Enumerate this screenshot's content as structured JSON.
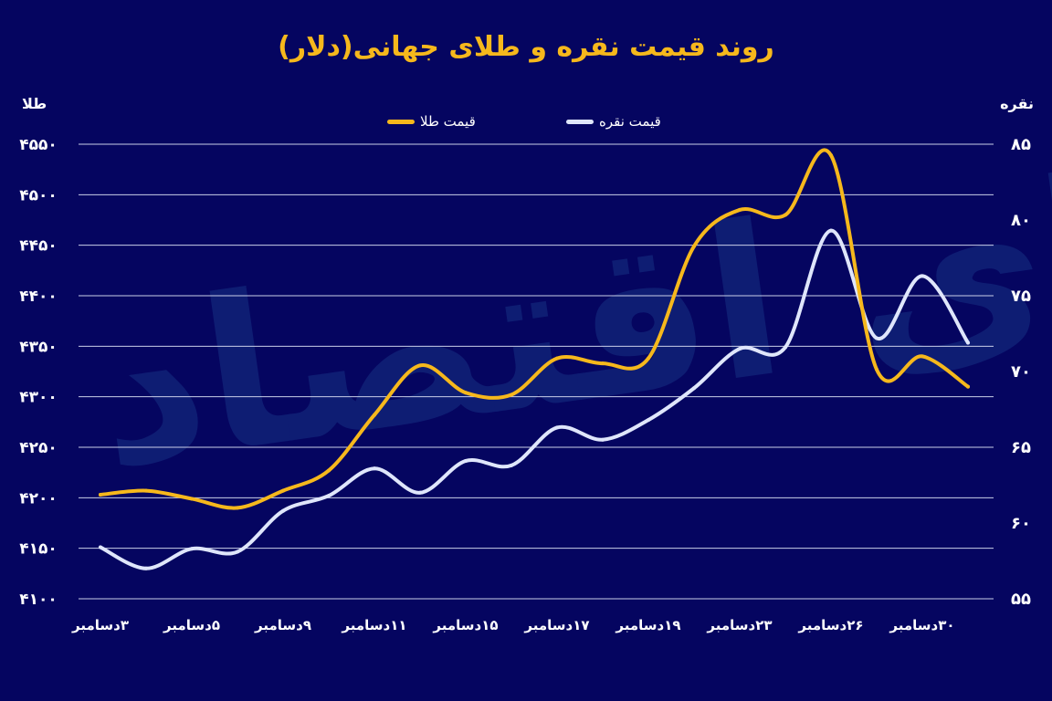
{
  "watermark": "دنیای اقتصاد",
  "chart_data": {
    "type": "line",
    "title": "روند قیمت نقره و طلای جهانی(دلار)",
    "ylabel_left": "طلا",
    "ylabel_right": "نقره",
    "x_labels": [
      "۳دسامبر",
      "۵دسامبر",
      "۹دسامبر",
      "۱۱دسامبر",
      "۱۵دسامبر",
      "۱۷دسامبر",
      "۱۹دسامبر",
      "۲۳دسامبر",
      "۲۶دسامبر",
      "۳۰دسامبر"
    ],
    "y_left": {
      "range": [
        4100,
        4550
      ],
      "ticks": [
        "۴۱۰۰",
        "۴۱۵۰",
        "۴۲۰۰",
        "۴۲۵۰",
        "۴۳۰۰",
        "۴۳۵۰",
        "۴۴۰۰",
        "۴۴۵۰",
        "۴۵۰۰",
        "۴۵۵۰"
      ]
    },
    "y_right": {
      "range": [
        55,
        85
      ],
      "ticks": [
        "۵۵",
        "۶۰",
        "۶۵",
        "۷۰",
        "۷۵",
        "۸۰",
        "۸۵"
      ]
    },
    "grid": true,
    "legend_position": "top-center",
    "series": [
      {
        "name": "قیمت طلا",
        "axis": "left",
        "color": "#f6b81c",
        "values": [
          4203,
          4207,
          4199,
          4190,
          4207,
          4227,
          4282,
          4331,
          4304,
          4302,
          4338,
          4333,
          4338,
          4449,
          4485,
          4480,
          4539,
          4327,
          4340,
          4310
        ]
      },
      {
        "name": "قیمت نقره",
        "axis": "right",
        "color": "#dfe6fb",
        "values": [
          58.4,
          57.0,
          58.3,
          58.1,
          60.8,
          61.8,
          63.6,
          62.0,
          64.1,
          63.8,
          66.3,
          65.5,
          66.8,
          68.9,
          71.5,
          71.6,
          79.3,
          72.2,
          76.3,
          71.9
        ]
      }
    ]
  }
}
